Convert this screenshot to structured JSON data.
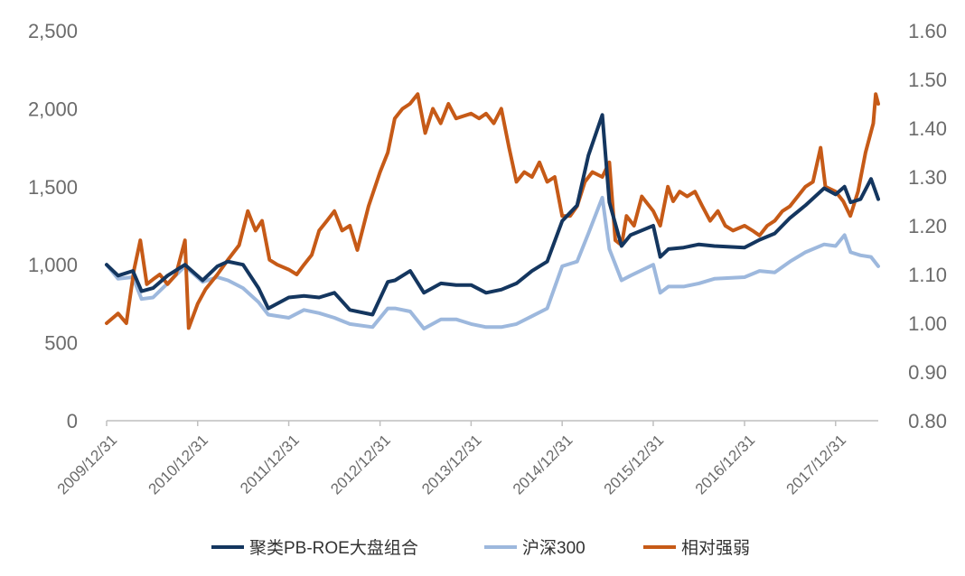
{
  "chart_data": {
    "type": "line",
    "title": "",
    "xlabel": "",
    "ylabel": "",
    "x_tick_labels": [
      "2009/12/31",
      "2010/12/31",
      "2011/12/31",
      "2012/12/31",
      "2013/12/31",
      "2014/12/31",
      "2015/12/31",
      "2016/12/31",
      "2017/12/31"
    ],
    "y_left": {
      "ylim": [
        0,
        2500
      ],
      "tick_labels": [
        "0",
        "500",
        "1,000",
        "1,500",
        "2,000",
        "2,500"
      ],
      "tick_values": [
        0,
        500,
        1000,
        1500,
        2000,
        2500
      ]
    },
    "y_right": {
      "ylim": [
        0.8,
        1.6
      ],
      "tick_labels": [
        "0.80",
        "0.90",
        "1.00",
        "1.10",
        "1.20",
        "1.30",
        "1.40",
        "1.50",
        "1.60"
      ],
      "tick_values": [
        0.8,
        0.9,
        1.0,
        1.1,
        1.2,
        1.3,
        1.4,
        1.5,
        1.6
      ]
    },
    "grid": false,
    "legend_position": "bottom",
    "series": [
      {
        "name": "聚类PB-ROE大盘组合",
        "axis": "left",
        "color": "#14365f",
        "points": [
          [
            "2009-12-31",
            1000
          ],
          [
            "2010-02-15",
            930
          ],
          [
            "2010-04-15",
            960
          ],
          [
            "2010-05-20",
            830
          ],
          [
            "2010-07-05",
            850
          ],
          [
            "2010-09-01",
            930
          ],
          [
            "2010-11-10",
            1000
          ],
          [
            "2011-01-20",
            900
          ],
          [
            "2011-03-20",
            990
          ],
          [
            "2011-05-01",
            1020
          ],
          [
            "2011-07-01",
            1000
          ],
          [
            "2011-09-01",
            850
          ],
          [
            "2011-10-10",
            720
          ],
          [
            "2011-12-31",
            790
          ],
          [
            "2012-03-01",
            800
          ],
          [
            "2012-05-01",
            790
          ],
          [
            "2012-07-01",
            820
          ],
          [
            "2012-09-01",
            710
          ],
          [
            "2012-12-01",
            680
          ],
          [
            "2013-01-31",
            890
          ],
          [
            "2013-03-01",
            900
          ],
          [
            "2013-05-01",
            960
          ],
          [
            "2013-06-25",
            820
          ],
          [
            "2013-09-01",
            880
          ],
          [
            "2013-11-01",
            870
          ],
          [
            "2013-12-31",
            870
          ],
          [
            "2014-03-01",
            820
          ],
          [
            "2014-05-01",
            840
          ],
          [
            "2014-07-01",
            880
          ],
          [
            "2014-09-01",
            960
          ],
          [
            "2014-11-01",
            1020
          ],
          [
            "2014-12-31",
            1280
          ],
          [
            "2015-03-01",
            1380
          ],
          [
            "2015-04-15",
            1700
          ],
          [
            "2015-06-10",
            1960
          ],
          [
            "2015-07-08",
            1400
          ],
          [
            "2015-08-26",
            1120
          ],
          [
            "2015-10-01",
            1190
          ],
          [
            "2015-12-31",
            1250
          ],
          [
            "2016-01-28",
            1050
          ],
          [
            "2016-03-01",
            1100
          ],
          [
            "2016-05-01",
            1110
          ],
          [
            "2016-07-01",
            1130
          ],
          [
            "2016-09-01",
            1120
          ],
          [
            "2016-12-31",
            1110
          ],
          [
            "2017-03-01",
            1160
          ],
          [
            "2017-05-01",
            1200
          ],
          [
            "2017-07-01",
            1300
          ],
          [
            "2017-09-01",
            1380
          ],
          [
            "2017-11-15",
            1490
          ],
          [
            "2017-12-31",
            1450
          ],
          [
            "2018-02-05",
            1500
          ],
          [
            "2018-03-01",
            1400
          ],
          [
            "2018-04-10",
            1420
          ],
          [
            "2018-05-22",
            1550
          ],
          [
            "2018-06-20",
            1420
          ]
        ]
      },
      {
        "name": "沪深300",
        "axis": "left",
        "color": "#9db8dd",
        "points": [
          [
            "2009-12-31",
            1000
          ],
          [
            "2010-02-15",
            910
          ],
          [
            "2010-04-15",
            920
          ],
          [
            "2010-05-20",
            780
          ],
          [
            "2010-07-05",
            790
          ],
          [
            "2010-09-01",
            880
          ],
          [
            "2010-11-10",
            990
          ],
          [
            "2011-01-20",
            890
          ],
          [
            "2011-03-20",
            920
          ],
          [
            "2011-05-01",
            900
          ],
          [
            "2011-07-01",
            850
          ],
          [
            "2011-09-01",
            760
          ],
          [
            "2011-10-10",
            680
          ],
          [
            "2011-12-31",
            660
          ],
          [
            "2012-03-01",
            710
          ],
          [
            "2012-05-01",
            690
          ],
          [
            "2012-07-01",
            660
          ],
          [
            "2012-09-01",
            620
          ],
          [
            "2012-12-01",
            600
          ],
          [
            "2013-01-31",
            720
          ],
          [
            "2013-03-01",
            720
          ],
          [
            "2013-05-01",
            700
          ],
          [
            "2013-06-25",
            590
          ],
          [
            "2013-09-01",
            650
          ],
          [
            "2013-11-01",
            650
          ],
          [
            "2013-12-31",
            620
          ],
          [
            "2014-03-01",
            600
          ],
          [
            "2014-05-01",
            600
          ],
          [
            "2014-07-01",
            620
          ],
          [
            "2014-09-01",
            670
          ],
          [
            "2014-11-01",
            720
          ],
          [
            "2014-12-31",
            990
          ],
          [
            "2015-03-01",
            1020
          ],
          [
            "2015-04-15",
            1200
          ],
          [
            "2015-06-10",
            1430
          ],
          [
            "2015-07-08",
            1100
          ],
          [
            "2015-08-26",
            900
          ],
          [
            "2015-10-01",
            930
          ],
          [
            "2015-12-31",
            1000
          ],
          [
            "2016-01-28",
            820
          ],
          [
            "2016-03-01",
            860
          ],
          [
            "2016-05-01",
            860
          ],
          [
            "2016-07-01",
            880
          ],
          [
            "2016-09-01",
            910
          ],
          [
            "2016-12-31",
            920
          ],
          [
            "2017-03-01",
            960
          ],
          [
            "2017-05-01",
            950
          ],
          [
            "2017-07-01",
            1020
          ],
          [
            "2017-09-01",
            1080
          ],
          [
            "2017-11-15",
            1130
          ],
          [
            "2017-12-31",
            1120
          ],
          [
            "2018-02-05",
            1190
          ],
          [
            "2018-03-01",
            1080
          ],
          [
            "2018-04-10",
            1060
          ],
          [
            "2018-05-22",
            1050
          ],
          [
            "2018-06-20",
            990
          ]
        ]
      },
      {
        "name": "相对强弱",
        "axis": "right",
        "color": "#c65a17",
        "points": [
          [
            "2009-12-31",
            1.0
          ],
          [
            "2010-02-15",
            1.02
          ],
          [
            "2010-03-20",
            1.0
          ],
          [
            "2010-04-20",
            1.11
          ],
          [
            "2010-05-15",
            1.17
          ],
          [
            "2010-06-10",
            1.08
          ],
          [
            "2010-07-05",
            1.09
          ],
          [
            "2010-08-01",
            1.1
          ],
          [
            "2010-09-01",
            1.08
          ],
          [
            "2010-10-05",
            1.1
          ],
          [
            "2010-11-10",
            1.17
          ],
          [
            "2010-11-25",
            0.99
          ],
          [
            "2010-12-31",
            1.04
          ],
          [
            "2011-02-01",
            1.07
          ],
          [
            "2011-03-20",
            1.1
          ],
          [
            "2011-05-01",
            1.13
          ],
          [
            "2011-06-15",
            1.16
          ],
          [
            "2011-07-20",
            1.23
          ],
          [
            "2011-08-20",
            1.19
          ],
          [
            "2011-09-15",
            1.21
          ],
          [
            "2011-10-15",
            1.13
          ],
          [
            "2011-11-15",
            1.12
          ],
          [
            "2011-12-31",
            1.11
          ],
          [
            "2012-02-01",
            1.1
          ],
          [
            "2012-03-01",
            1.12
          ],
          [
            "2012-04-01",
            1.14
          ],
          [
            "2012-05-01",
            1.19
          ],
          [
            "2012-06-01",
            1.21
          ],
          [
            "2012-07-01",
            1.23
          ],
          [
            "2012-08-01",
            1.19
          ],
          [
            "2012-09-01",
            1.2
          ],
          [
            "2012-10-01",
            1.15
          ],
          [
            "2012-11-15",
            1.24
          ],
          [
            "2012-12-31",
            1.31
          ],
          [
            "2013-01-31",
            1.35
          ],
          [
            "2013-02-28",
            1.42
          ],
          [
            "2013-03-31",
            1.44
          ],
          [
            "2013-04-30",
            1.45
          ],
          [
            "2013-05-31",
            1.47
          ],
          [
            "2013-06-30",
            1.39
          ],
          [
            "2013-07-31",
            1.44
          ],
          [
            "2013-08-31",
            1.41
          ],
          [
            "2013-10-01",
            1.45
          ],
          [
            "2013-11-01",
            1.42
          ],
          [
            "2013-12-31",
            1.43
          ],
          [
            "2014-02-01",
            1.42
          ],
          [
            "2014-03-01",
            1.43
          ],
          [
            "2014-04-01",
            1.41
          ],
          [
            "2014-05-01",
            1.44
          ],
          [
            "2014-06-01",
            1.36
          ],
          [
            "2014-07-01",
            1.29
          ],
          [
            "2014-08-01",
            1.31
          ],
          [
            "2014-09-01",
            1.3
          ],
          [
            "2014-10-01",
            1.33
          ],
          [
            "2014-11-01",
            1.29
          ],
          [
            "2014-12-01",
            1.3
          ],
          [
            "2014-12-31",
            1.22
          ],
          [
            "2015-02-01",
            1.22
          ],
          [
            "2015-03-01",
            1.24
          ],
          [
            "2015-04-01",
            1.29
          ],
          [
            "2015-05-01",
            1.31
          ],
          [
            "2015-06-10",
            1.3
          ],
          [
            "2015-07-08",
            1.33
          ],
          [
            "2015-08-01",
            1.17
          ],
          [
            "2015-08-26",
            1.16
          ],
          [
            "2015-09-15",
            1.22
          ],
          [
            "2015-10-15",
            1.2
          ],
          [
            "2015-11-15",
            1.26
          ],
          [
            "2015-12-31",
            1.23
          ],
          [
            "2016-01-28",
            1.2
          ],
          [
            "2016-02-28",
            1.28
          ],
          [
            "2016-03-20",
            1.25
          ],
          [
            "2016-04-15",
            1.27
          ],
          [
            "2016-05-15",
            1.26
          ],
          [
            "2016-06-15",
            1.27
          ],
          [
            "2016-07-15",
            1.24
          ],
          [
            "2016-08-15",
            1.21
          ],
          [
            "2016-09-15",
            1.23
          ],
          [
            "2016-10-15",
            1.2
          ],
          [
            "2016-11-15",
            1.19
          ],
          [
            "2016-12-31",
            1.2
          ],
          [
            "2017-02-01",
            1.19
          ],
          [
            "2017-03-01",
            1.18
          ],
          [
            "2017-04-01",
            1.2
          ],
          [
            "2017-05-01",
            1.21
          ],
          [
            "2017-06-01",
            1.23
          ],
          [
            "2017-07-01",
            1.24
          ],
          [
            "2017-08-01",
            1.26
          ],
          [
            "2017-09-01",
            1.28
          ],
          [
            "2017-10-01",
            1.29
          ],
          [
            "2017-11-01",
            1.36
          ],
          [
            "2017-11-20",
            1.28
          ],
          [
            "2017-12-31",
            1.27
          ],
          [
            "2018-01-31",
            1.25
          ],
          [
            "2018-02-28",
            1.22
          ],
          [
            "2018-03-31",
            1.27
          ],
          [
            "2018-04-30",
            1.35
          ],
          [
            "2018-05-31",
            1.41
          ],
          [
            "2018-06-10",
            1.47
          ],
          [
            "2018-06-20",
            1.45
          ]
        ]
      }
    ]
  }
}
